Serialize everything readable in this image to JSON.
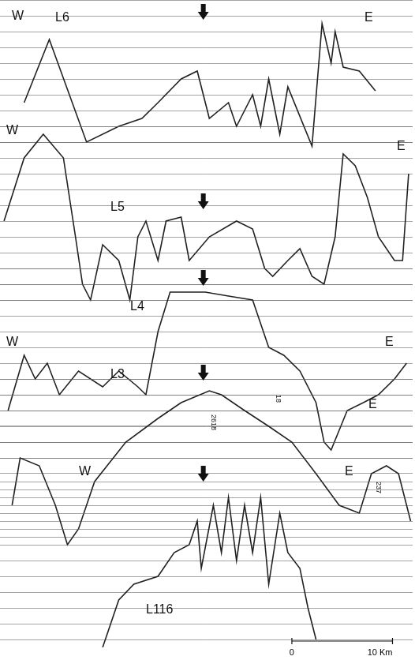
{
  "chart_data": [
    {
      "type": "line",
      "title": "L6",
      "color": "#222222",
      "grid": true,
      "tick_labels": false,
      "ends": [
        "W",
        "E"
      ],
      "arrow_x": 20.2,
      "xlim": [
        0,
        41
      ],
      "ylim": [
        0,
        20
      ],
      "yticks": [
        0,
        2,
        4,
        6,
        8,
        10,
        12,
        14,
        16,
        18,
        20
      ],
      "x": [
        2.4,
        4.9,
        8.6,
        11.8,
        14.1,
        15.7,
        18.0,
        19.6,
        20.8,
        22.7,
        23.5,
        25.1,
        25.9,
        26.7,
        27.8,
        28.6,
        31.0,
        32.0,
        32.9,
        33.3,
        34.1,
        35.7,
        37.3
      ],
      "values": [
        13,
        5,
        18,
        16,
        15,
        13,
        10,
        9,
        15,
        13,
        16,
        12,
        16,
        10,
        17,
        11,
        18.5,
        3,
        8,
        4,
        8.5,
        9,
        11.5
      ]
    },
    {
      "type": "line",
      "title": "L5",
      "color": "#222222",
      "grid": true,
      "tick_labels": false,
      "ends": [
        "W",
        "E"
      ],
      "arrow_x": 20.2,
      "xlim": [
        0,
        41
      ],
      "ylim": [
        0,
        24
      ],
      "yticks": [
        0,
        2,
        4,
        6,
        8,
        10,
        12,
        14,
        16,
        18,
        20,
        22,
        24
      ],
      "x": [
        0.4,
        2.4,
        4.3,
        6.3,
        7.5,
        8.2,
        9.0,
        10.2,
        11.8,
        12.9,
        13.7,
        14.5,
        15.7,
        16.5,
        18.0,
        18.8,
        20.8,
        23.5,
        25.1,
        26.3,
        27.1,
        28.6,
        29.8,
        31.0,
        32.2,
        33.3,
        34.1,
        35.3,
        36.5,
        37.6,
        39.2,
        40.0,
        40.6
      ],
      "values": [
        12,
        4,
        1,
        4,
        14,
        20,
        22,
        15,
        17,
        22,
        14,
        12,
        17,
        12,
        11.5,
        17,
        14,
        12,
        13,
        18,
        19,
        17,
        15.5,
        19,
        20,
        14,
        3.5,
        5,
        9,
        14,
        17,
        17,
        6
      ]
    },
    {
      "type": "line",
      "title": "L4",
      "color": "#222222",
      "grid": true,
      "tick_labels": false,
      "ends": [
        "W",
        "E"
      ],
      "arrow_x": 20.2,
      "xlim": [
        0,
        41
      ],
      "ylim": [
        0,
        25
      ],
      "yticks": [
        0,
        2,
        4,
        6,
        8,
        10,
        12,
        14,
        16,
        18,
        20,
        22,
        24
      ],
      "x": [
        0.8,
        2.4,
        3.5,
        4.7,
        5.9,
        7.8,
        10.2,
        11.8,
        13.7,
        14.5,
        15.7,
        16.9,
        20.4,
        22.7,
        25.1,
        26.7,
        28.2,
        29.8,
        31.4,
        32.2,
        32.9,
        34.5,
        36.1,
        37.6,
        39.2,
        40.4
      ],
      "values": [
        18,
        11,
        14,
        12,
        16,
        13,
        15,
        13,
        15,
        16,
        8,
        3,
        3,
        3.5,
        4,
        10,
        11,
        13,
        17,
        22,
        23,
        18,
        17,
        16,
        14,
        12
      ]
    },
    {
      "type": "line",
      "title": "L3",
      "color": "#222222",
      "grid": true,
      "tick_labels": false,
      "ends": [
        null,
        "E"
      ],
      "arrow_x": 20.2,
      "xlim": [
        0,
        41
      ],
      "ylim": [
        0,
        22
      ],
      "yticks": [
        0,
        2,
        4,
        6,
        8,
        10,
        12,
        14,
        16,
        18,
        20,
        22
      ],
      "x": [
        1.2,
        2.0,
        3.9,
        5.5,
        6.7,
        7.8,
        9.4,
        12.5,
        15.7,
        18.0,
        20.8,
        22.0,
        24.3,
        26.7,
        29.0,
        31.4,
        33.7,
        35.7,
        36.9,
        38.4,
        39.6,
        40.8
      ],
      "values": [
        16,
        10,
        11,
        16,
        21,
        19,
        13,
        8,
        5,
        3,
        1.5,
        2,
        4,
        6,
        8,
        12,
        16,
        17,
        12,
        11,
        12,
        18
      ],
      "annotations": [
        {
          "text": "2618",
          "x": 21.2,
          "y": 4.5
        },
        {
          "text": "18",
          "x": 27.6,
          "y": 2
        },
        {
          "text": "237",
          "x": 37.6,
          "y": 13
        }
      ]
    },
    {
      "type": "line",
      "title": "L116",
      "color": "#222222",
      "grid": true,
      "tick_labels": false,
      "ends": [
        "W",
        "E"
      ],
      "arrow_x": 20.2,
      "xlim": [
        0,
        41
      ],
      "ylim": [
        0,
        21
      ],
      "yticks": [
        0,
        2,
        4,
        6,
        8,
        10,
        12,
        14,
        16,
        18,
        20
      ],
      "x": [
        10.2,
        11.8,
        13.3,
        15.7,
        17.3,
        18.8,
        19.6,
        20.0,
        21.2,
        22.0,
        22.7,
        23.5,
        24.3,
        25.1,
        25.9,
        26.7,
        27.8,
        28.6,
        29.8,
        30.6,
        31.4
      ],
      "values": [
        21,
        15,
        13,
        12,
        9,
        8,
        5,
        11,
        3,
        9,
        2,
        10,
        3,
        9,
        2,
        13,
        4,
        9,
        11,
        16,
        20
      ]
    }
  ],
  "scale_bar": {
    "labels": [
      "0",
      "10 Km"
    ],
    "length": 10
  }
}
